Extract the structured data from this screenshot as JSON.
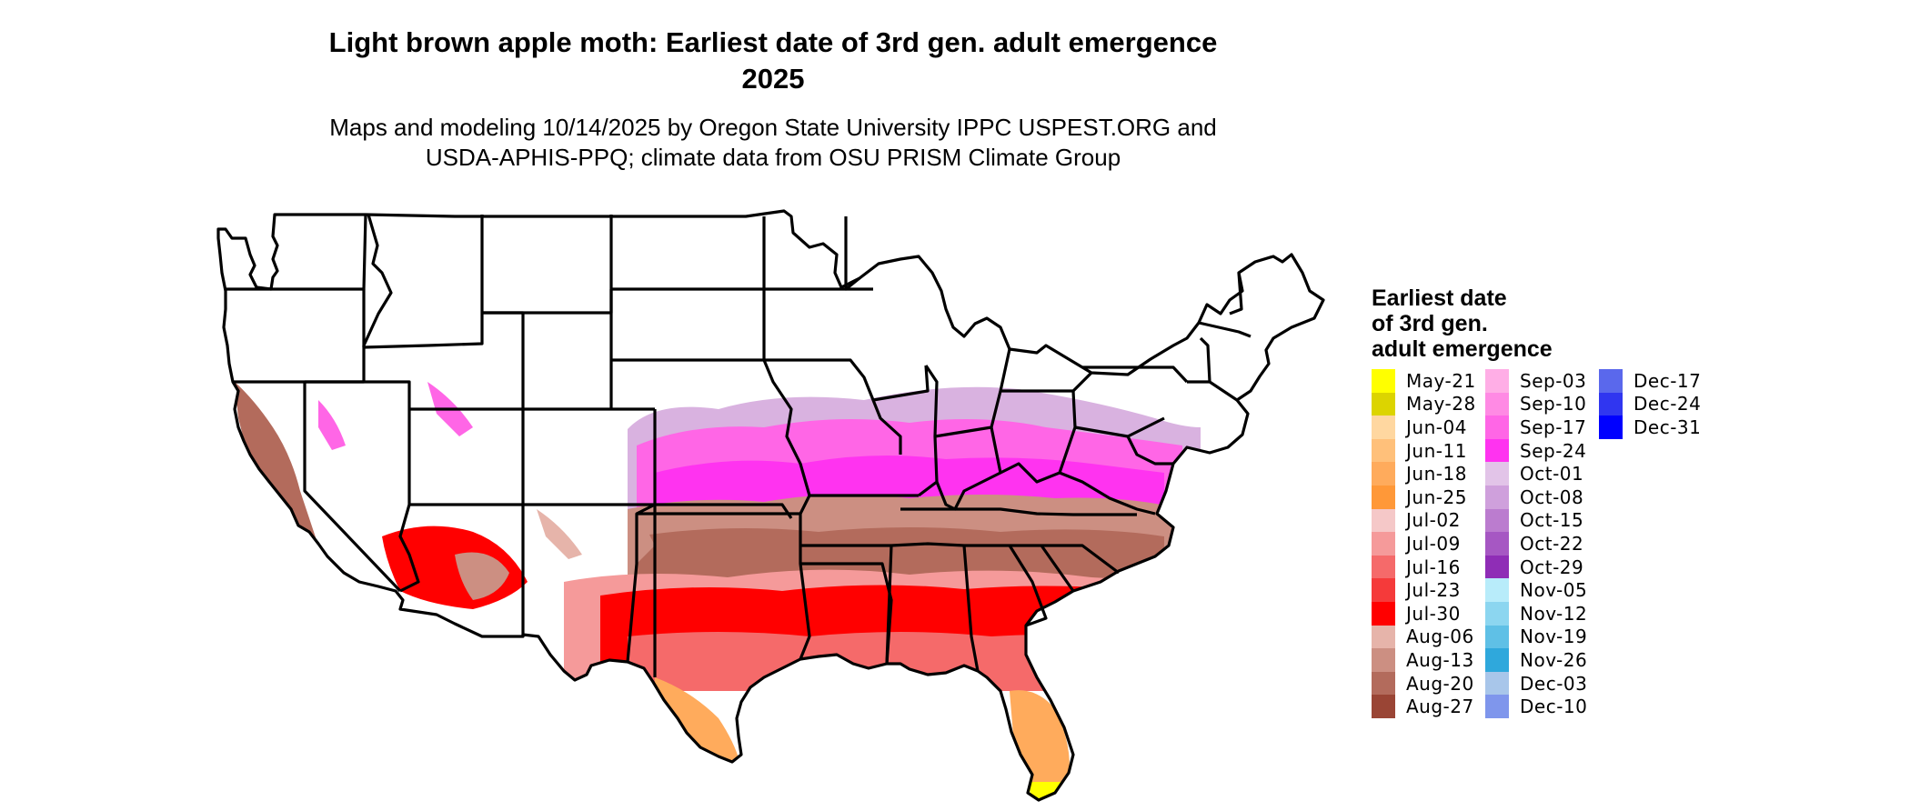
{
  "title_line1": "Light brown apple moth: Earliest date of 3rd gen. adult emergence",
  "title_line2": "2025",
  "subtitle_line1": "Maps and modeling 10/14/2025 by Oregon State University IPPC USPEST.ORG and",
  "subtitle_line2": "USDA-APHIS-PPQ; climate data from OSU PRISM Climate Group",
  "legend": {
    "title_lines": [
      "Earliest date",
      "of 3rd gen.",
      "adult emergence"
    ],
    "items": [
      {
        "label": "May-21",
        "color": "#ffff00"
      },
      {
        "label": "May-28",
        "color": "#dcd400"
      },
      {
        "label": "Jun-04",
        "color": "#ffd7a0"
      },
      {
        "label": "Jun-11",
        "color": "#ffc07a"
      },
      {
        "label": "Jun-18",
        "color": "#ffab5c"
      },
      {
        "label": "Jun-25",
        "color": "#ff9838"
      },
      {
        "label": "Jul-02",
        "color": "#f5c8c8"
      },
      {
        "label": "Jul-09",
        "color": "#f59a9a"
      },
      {
        "label": "Jul-16",
        "color": "#f56a6a"
      },
      {
        "label": "Jul-23",
        "color": "#f53a3a"
      },
      {
        "label": "Jul-30",
        "color": "#ff0000"
      },
      {
        "label": "Aug-06",
        "color": "#e6b4aa"
      },
      {
        "label": "Aug-13",
        "color": "#cc8f82"
      },
      {
        "label": "Aug-20",
        "color": "#b36b5c"
      },
      {
        "label": "Aug-27",
        "color": "#9a4535"
      },
      {
        "label": "Sep-03",
        "color": "#ffaee6"
      },
      {
        "label": "Sep-10",
        "color": "#ff8ae4"
      },
      {
        "label": "Sep-17",
        "color": "#ff66e6"
      },
      {
        "label": "Sep-24",
        "color": "#ff33f0"
      },
      {
        "label": "Oct-01",
        "color": "#e2c4e8"
      },
      {
        "label": "Oct-08",
        "color": "#cfa0dc"
      },
      {
        "label": "Oct-15",
        "color": "#bb7ccf"
      },
      {
        "label": "Oct-22",
        "color": "#a657c3"
      },
      {
        "label": "Oct-29",
        "color": "#8f2db6"
      },
      {
        "label": "Nov-05",
        "color": "#b8ecfa"
      },
      {
        "label": "Nov-12",
        "color": "#8cd6f0"
      },
      {
        "label": "Nov-19",
        "color": "#5fc0e6"
      },
      {
        "label": "Nov-26",
        "color": "#2fa8dc"
      },
      {
        "label": "Dec-03",
        "color": "#a8c6ea"
      },
      {
        "label": "Dec-10",
        "color": "#7f96ec"
      },
      {
        "label": "Dec-17",
        "color": "#5a68ec"
      },
      {
        "label": "Dec-24",
        "color": "#3036f0"
      },
      {
        "label": "Dec-31",
        "color": "#0000ff"
      }
    ]
  }
}
